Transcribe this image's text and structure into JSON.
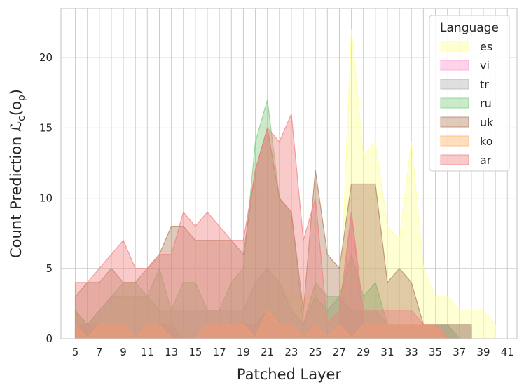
{
  "chart_data": {
    "type": "area",
    "title": "",
    "xlabel": "Patched Layer",
    "ylabel": "Count Prediction ℒ",
    "ylabel_sub": "c",
    "ylabel_arg": "(o",
    "ylabel_arg_sub": "p",
    "ylabel_close": ")",
    "xlim": [
      3.8,
      41.8
    ],
    "ylim": [
      0,
      23.5
    ],
    "xticks": [
      5,
      7,
      9,
      11,
      13,
      15,
      17,
      19,
      21,
      23,
      25,
      27,
      29,
      31,
      33,
      35,
      37,
      39,
      41
    ],
    "yticks": [
      0,
      5,
      10,
      15,
      20
    ],
    "grid": true,
    "legend": {
      "title": "Language",
      "placement": "top-right"
    },
    "series": [
      {
        "name": "es",
        "color": "#ffff99",
        "x": [
          5,
          6,
          7,
          8,
          9,
          10,
          11,
          12,
          13,
          14,
          15,
          16,
          17,
          18,
          19,
          20,
          21,
          22,
          23,
          24,
          25,
          26,
          27,
          28,
          29,
          30,
          31,
          32,
          33,
          34,
          35,
          36,
          37,
          38,
          39,
          40
        ],
        "values": [
          2,
          1,
          1,
          2,
          3,
          3,
          3,
          2,
          1,
          1,
          0,
          1,
          1,
          1,
          1,
          1,
          3,
          4,
          3,
          3,
          3,
          2,
          1,
          22,
          13,
          14,
          8,
          7,
          14,
          5,
          3,
          3,
          2,
          2,
          2,
          1
        ]
      },
      {
        "name": "vi",
        "color": "#ff99cc",
        "x": [
          5,
          6,
          7,
          8,
          9,
          10,
          11,
          12,
          13,
          14,
          15,
          16,
          17,
          18,
          19,
          20,
          21,
          22,
          23,
          24,
          25,
          26,
          27,
          28,
          29,
          30,
          31,
          32,
          33,
          34,
          35,
          36,
          37
        ],
        "values": [
          1,
          1,
          1,
          1,
          1,
          0,
          1,
          1,
          1,
          0,
          0,
          1,
          1,
          1,
          1,
          1,
          2,
          1,
          1,
          0,
          1,
          0,
          1,
          9,
          1,
          1,
          1,
          1,
          1,
          1,
          1,
          1,
          0
        ]
      },
      {
        "name": "tr",
        "color": "#b3b3b3",
        "x": [
          5,
          6,
          7,
          8,
          9,
          10,
          11,
          12,
          13,
          14,
          15,
          16,
          17,
          18,
          19,
          20,
          21,
          22,
          23,
          24,
          25,
          26,
          27,
          28,
          29,
          30,
          31,
          32,
          33,
          34,
          35,
          36,
          37,
          38
        ],
        "values": [
          2,
          1,
          2,
          3,
          3,
          3,
          3,
          2,
          2,
          2,
          2,
          2,
          2,
          2,
          2,
          4,
          5,
          4,
          2,
          1,
          3,
          2,
          3,
          2,
          2,
          2,
          1,
          1,
          1,
          1,
          1,
          1,
          1,
          1
        ]
      },
      {
        "name": "ru",
        "color": "#80cc80",
        "x": [
          5,
          6,
          7,
          8,
          9,
          10,
          11,
          12,
          13,
          14,
          15,
          16,
          17,
          18,
          19,
          20,
          21,
          22,
          23,
          24,
          25,
          26,
          27,
          28,
          29,
          30,
          31,
          32,
          33,
          34,
          35,
          36,
          37
        ],
        "values": [
          2,
          1,
          2,
          3,
          4,
          4,
          3,
          5,
          2,
          4,
          4,
          2,
          2,
          4,
          5,
          14,
          17,
          10,
          9,
          1,
          4,
          3,
          3,
          6,
          3,
          4,
          1,
          1,
          1,
          1,
          1,
          1,
          0
        ]
      },
      {
        "name": "uk",
        "color": "#b38060",
        "x": [
          5,
          6,
          7,
          8,
          9,
          10,
          11,
          12,
          13,
          14,
          15,
          16,
          17,
          18,
          19,
          20,
          21,
          22,
          23,
          24,
          25,
          26,
          27,
          28,
          29,
          30,
          31,
          32,
          33,
          34,
          35,
          36,
          37,
          38
        ],
        "values": [
          3,
          4,
          4,
          5,
          4,
          4,
          5,
          6,
          8,
          8,
          7,
          7,
          7,
          7,
          6,
          12,
          15,
          10,
          9,
          2,
          12,
          6,
          5,
          11,
          11,
          11,
          4,
          5,
          4,
          1,
          1,
          1,
          1,
          1
        ]
      },
      {
        "name": "ko",
        "color": "#ffb366",
        "x": [
          5,
          6,
          7,
          8,
          9,
          10,
          11,
          12,
          13,
          14,
          15,
          16,
          17,
          18,
          19,
          20,
          21,
          22,
          23,
          24,
          25,
          26,
          27,
          28,
          29,
          30,
          31,
          32,
          33,
          34,
          35,
          36
        ],
        "values": [
          1,
          0,
          1,
          1,
          1,
          0,
          1,
          1,
          0,
          0,
          0,
          1,
          1,
          1,
          1,
          0,
          2,
          1,
          1,
          0,
          1,
          0,
          1,
          0,
          1,
          1,
          1,
          1,
          1,
          1,
          1,
          0
        ]
      },
      {
        "name": "ar",
        "color": "#f08080",
        "x": [
          5,
          6,
          7,
          8,
          9,
          10,
          11,
          12,
          13,
          14,
          15,
          16,
          17,
          18,
          19,
          20,
          21,
          22,
          23,
          24,
          25,
          26,
          27,
          28,
          29,
          30,
          31,
          32,
          33,
          34,
          35,
          36
        ],
        "values": [
          4,
          4,
          5,
          6,
          7,
          5,
          5,
          6,
          6,
          9,
          8,
          9,
          8,
          7,
          7,
          12,
          15,
          14,
          16,
          7,
          10,
          1,
          2,
          9,
          2,
          2,
          2,
          2,
          2,
          1,
          1,
          0
        ]
      }
    ]
  }
}
